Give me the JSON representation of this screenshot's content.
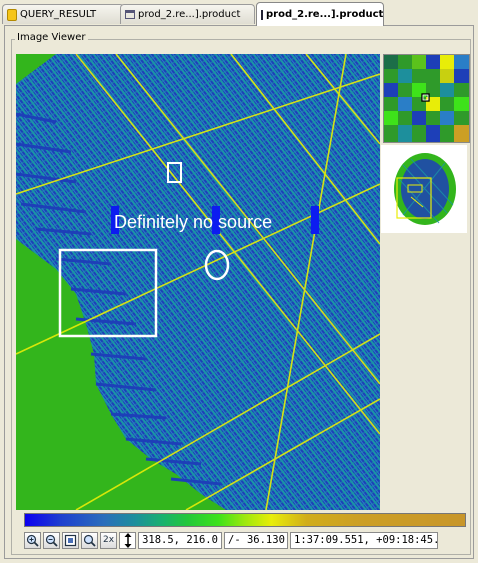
{
  "tabs": [
    {
      "label": "QUERY_RESULT",
      "icon": "table-icon",
      "active": false
    },
    {
      "label": "prod_2.re...].product",
      "icon": "list-icon",
      "active": false
    },
    {
      "label": "prod_2.re...].product",
      "icon": "image-icon",
      "active": true,
      "close": "✕"
    }
  ],
  "viewer": {
    "group_title": "Image Viewer",
    "annotation_text": "Definitely no source"
  },
  "colors": {
    "sky_background": "#33b51c",
    "grid_dark": "#1d3fb8",
    "grid_cyan": "#1a96a6",
    "ray_yellow": "#e8ed08",
    "annotation_white": "#ffffff"
  },
  "toolbar": {
    "buttons": [
      "zoom-in-icon",
      "zoom-out-icon",
      "zoom-fit-icon",
      "magnifier-icon"
    ],
    "zoom_label": "2x",
    "arrow_icon": "vertical-arrows-icon",
    "pixel_coords": "318.5, 216.0",
    "pixel_value": "/- 36.130",
    "world_coords": "1:37:09.551, +09:18:45.45"
  }
}
